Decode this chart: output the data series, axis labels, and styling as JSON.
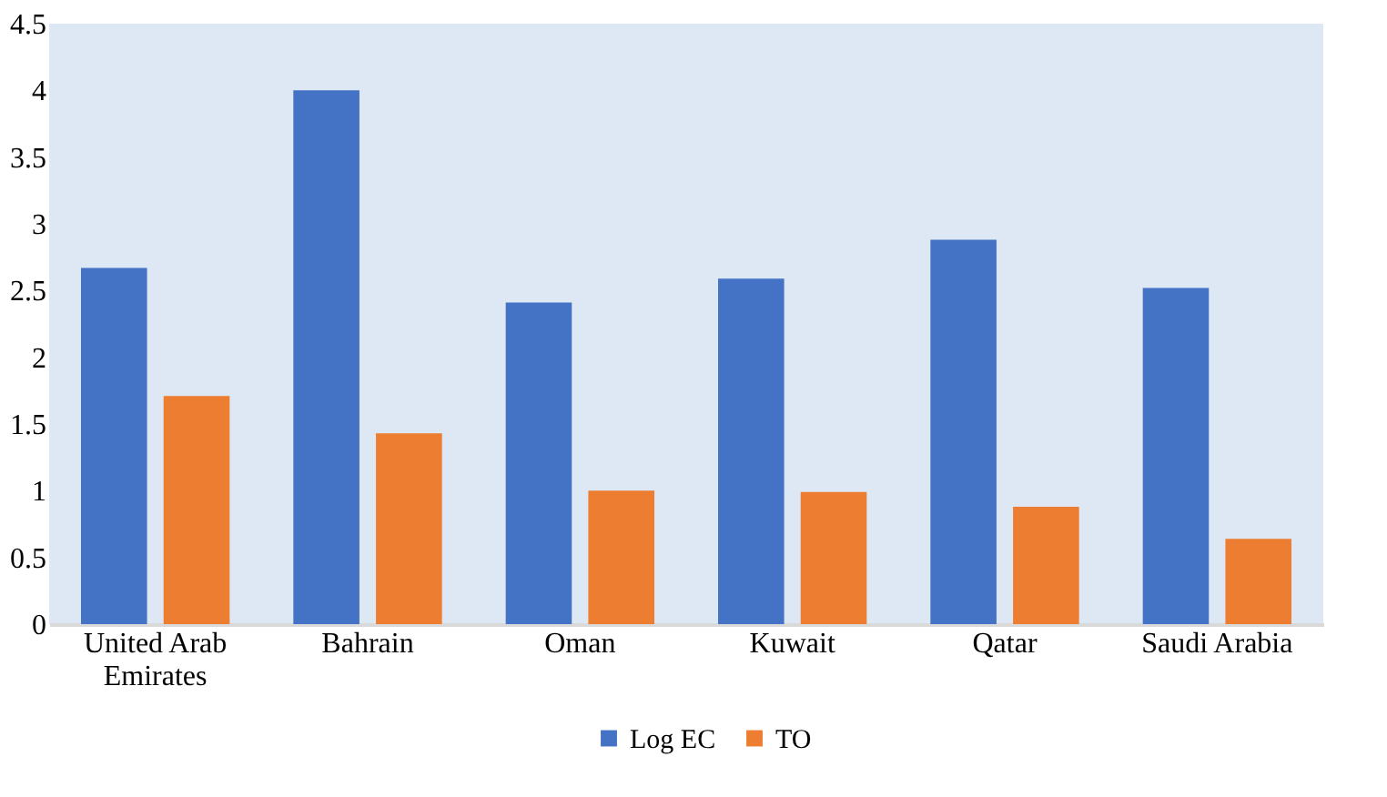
{
  "chart_data": {
    "type": "bar",
    "categories": [
      "United Arab Emirates",
      "Bahrain",
      "Oman",
      "Kuwait",
      "Qatar",
      "Saudi Arabia"
    ],
    "series": [
      {
        "name": "Log  EC",
        "color": "#4472c4",
        "values": [
          2.67,
          4.0,
          2.41,
          2.59,
          2.88,
          2.52
        ]
      },
      {
        "name": "TO",
        "color": "#ed7d31",
        "values": [
          1.71,
          1.43,
          1.0,
          0.99,
          0.88,
          0.64
        ]
      }
    ],
    "ylim": [
      0,
      4.5
    ],
    "yticks": [
      0,
      0.5,
      1,
      1.5,
      2,
      2.5,
      3,
      3.5,
      4,
      4.5
    ],
    "grid": false,
    "legend": "bottom"
  }
}
